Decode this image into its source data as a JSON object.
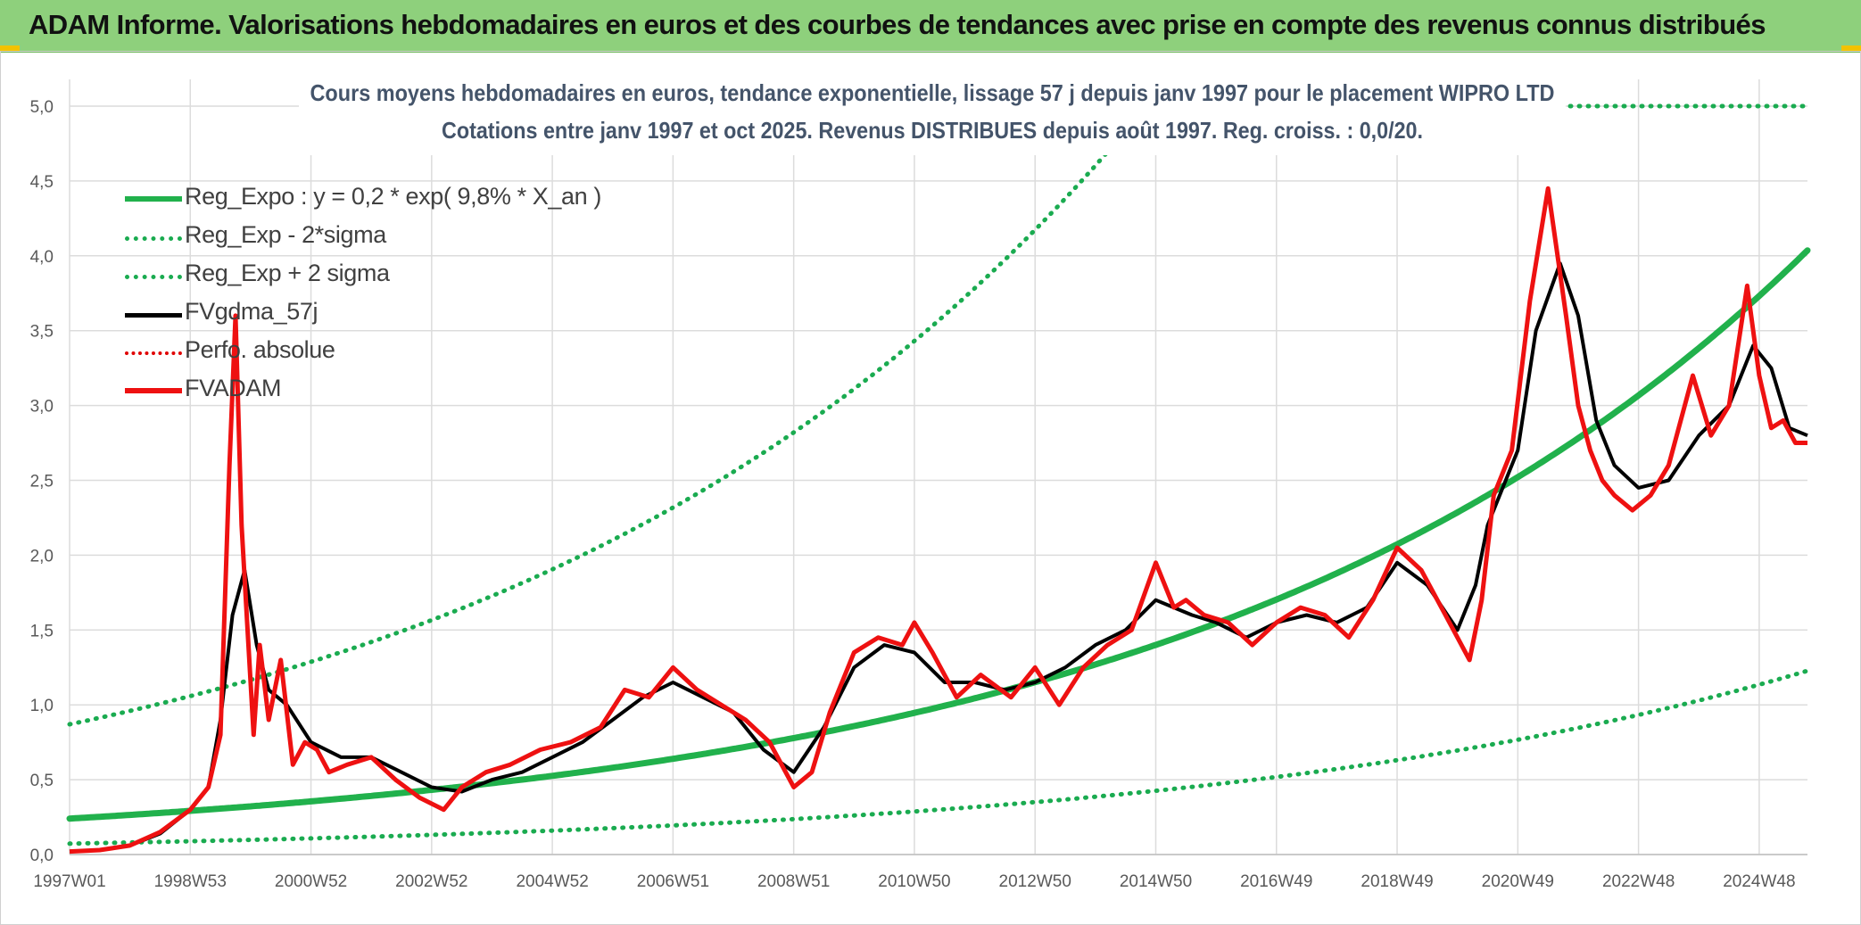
{
  "header": {
    "title": "ADAM Informe. Valorisations hebdomadaires en euros et des courbes de tendances avec prise en compte des revenus connus distribués"
  },
  "colors": {
    "header_bg": "#8ed07c",
    "reg": "#21b14c",
    "reg_band": "#1aab50",
    "fv57": "#000000",
    "perfo": "#e00000",
    "fvadam": "#ee1111",
    "grid": "#dcdcdc"
  },
  "chart_data": {
    "type": "line",
    "title": "Cours moyens hebdomadaires en euros, tendance exponentielle, lissage 57 j depuis janv 1997 pour le placement WIPRO LTD",
    "subtitle": "Cotations entre janv 1997 et oct 2025. Revenus DISTRIBUES depuis août 1997. Reg. croiss. : 0,0/20.",
    "xlabel": "",
    "ylabel": "",
    "xlim": [
      1997.0,
      2025.8
    ],
    "ylim": [
      0,
      5
    ],
    "yticks": [
      "0,0",
      "0,5",
      "1,0",
      "1,5",
      "2,0",
      "2,5",
      "3,0",
      "3,5",
      "4,0",
      "4,5",
      "5,0"
    ],
    "xticks": [
      {
        "label": "1997W01",
        "x": 1997.0
      },
      {
        "label": "1998W53",
        "x": 1999.0
      },
      {
        "label": "2000W52",
        "x": 2001.0
      },
      {
        "label": "2002W52",
        "x": 2003.0
      },
      {
        "label": "2004W52",
        "x": 2005.0
      },
      {
        "label": "2006W51",
        "x": 2007.0
      },
      {
        "label": "2008W51",
        "x": 2009.0
      },
      {
        "label": "2010W50",
        "x": 2011.0
      },
      {
        "label": "2012W50",
        "x": 2013.0
      },
      {
        "label": "2014W50",
        "x": 2015.0
      },
      {
        "label": "2016W49",
        "x": 2017.0
      },
      {
        "label": "2018W49",
        "x": 2019.0
      },
      {
        "label": "2020W49",
        "x": 2021.0
      },
      {
        "label": "2022W48",
        "x": 2023.0
      },
      {
        "label": "2024W48",
        "x": 2025.0
      }
    ],
    "series": [
      {
        "name": "Reg_Expo : y = 0,2 * exp( 9,8% *  X_an )",
        "style": "solid-green-thick",
        "a": 0.24,
        "rate": 0.098
      },
      {
        "name": "Reg_Exp - 2*sigma",
        "style": "dotted-green",
        "a": 0.073,
        "rate": 0.098
      },
      {
        "name": "Reg_Exp + 2 sigma",
        "style": "dotted-green",
        "a": 0.87,
        "rate": 0.098,
        "cap": 5.0
      },
      {
        "name": "FVgdma_57j",
        "style": "solid-black",
        "x": [
          1997.0,
          1997.5,
          1998.0,
          1998.5,
          1999.0,
          1999.3,
          1999.5,
          1999.7,
          1999.9,
          2000.1,
          2000.3,
          2000.6,
          2001.0,
          2001.5,
          2002.0,
          2002.5,
          2003.0,
          2003.5,
          2004.0,
          2004.5,
          2005.0,
          2005.5,
          2006.0,
          2006.5,
          2007.0,
          2007.5,
          2008.0,
          2008.5,
          2009.0,
          2009.5,
          2010.0,
          2010.5,
          2011.0,
          2011.5,
          2012.0,
          2012.5,
          2013.0,
          2013.5,
          2014.0,
          2014.5,
          2015.0,
          2015.3,
          2015.6,
          2016.0,
          2016.5,
          2017.0,
          2017.5,
          2018.0,
          2018.5,
          2019.0,
          2019.5,
          2020.0,
          2020.3,
          2020.5,
          2021.0,
          2021.3,
          2021.7,
          2022.0,
          2022.3,
          2022.6,
          2023.0,
          2023.5,
          2024.0,
          2024.5,
          2024.9,
          2025.2,
          2025.5,
          2025.8
        ],
        "y": [
          0.02,
          0.03,
          0.06,
          0.14,
          0.3,
          0.45,
          0.9,
          1.6,
          1.9,
          1.4,
          1.1,
          1.0,
          0.75,
          0.65,
          0.65,
          0.55,
          0.45,
          0.42,
          0.5,
          0.55,
          0.65,
          0.75,
          0.9,
          1.05,
          1.15,
          1.05,
          0.95,
          0.7,
          0.55,
          0.85,
          1.25,
          1.4,
          1.35,
          1.15,
          1.15,
          1.1,
          1.15,
          1.25,
          1.4,
          1.5,
          1.7,
          1.65,
          1.6,
          1.55,
          1.45,
          1.55,
          1.6,
          1.55,
          1.65,
          1.95,
          1.8,
          1.5,
          1.8,
          2.2,
          2.7,
          3.5,
          3.95,
          3.6,
          2.9,
          2.6,
          2.45,
          2.5,
          2.8,
          3.0,
          3.4,
          3.25,
          2.85,
          2.8
        ]
      },
      {
        "name": "Perfo. absolue",
        "style": "dotted-red"
      },
      {
        "name": "FVADAM",
        "style": "solid-red-thick",
        "x": [
          1997.0,
          1997.5,
          1998.0,
          1998.5,
          1999.0,
          1999.3,
          1999.5,
          1999.65,
          1999.75,
          1999.85,
          1999.95,
          2000.05,
          2000.15,
          2000.3,
          2000.5,
          2000.7,
          2000.9,
          2001.1,
          2001.3,
          2001.6,
          2002.0,
          2002.4,
          2002.8,
          2003.2,
          2003.5,
          2003.9,
          2004.3,
          2004.8,
          2005.3,
          2005.8,
          2006.2,
          2006.6,
          2007.0,
          2007.4,
          2007.8,
          2008.2,
          2008.6,
          2009.0,
          2009.3,
          2009.6,
          2010.0,
          2010.4,
          2010.8,
          2011.0,
          2011.3,
          2011.7,
          2012.1,
          2012.6,
          2013.0,
          2013.4,
          2013.8,
          2014.2,
          2014.6,
          2015.0,
          2015.3,
          2015.5,
          2015.8,
          2016.2,
          2016.6,
          2017.0,
          2017.4,
          2017.8,
          2018.2,
          2018.6,
          2019.0,
          2019.4,
          2019.8,
          2020.2,
          2020.4,
          2020.6,
          2020.9,
          2021.2,
          2021.5,
          2021.8,
          2022.0,
          2022.2,
          2022.4,
          2022.6,
          2022.9,
          2023.2,
          2023.5,
          2023.9,
          2024.2,
          2024.5,
          2024.8,
          2025.0,
          2025.2,
          2025.4,
          2025.6,
          2025.8
        ],
        "y": [
          0.02,
          0.03,
          0.06,
          0.15,
          0.3,
          0.45,
          0.8,
          2.6,
          3.6,
          2.2,
          1.5,
          0.8,
          1.4,
          0.9,
          1.3,
          0.6,
          0.75,
          0.7,
          0.55,
          0.6,
          0.65,
          0.5,
          0.38,
          0.3,
          0.45,
          0.55,
          0.6,
          0.7,
          0.75,
          0.85,
          1.1,
          1.05,
          1.25,
          1.1,
          1.0,
          0.9,
          0.75,
          0.45,
          0.55,
          0.95,
          1.35,
          1.45,
          1.4,
          1.55,
          1.35,
          1.05,
          1.2,
          1.05,
          1.25,
          1.0,
          1.25,
          1.4,
          1.5,
          1.95,
          1.65,
          1.7,
          1.6,
          1.55,
          1.4,
          1.55,
          1.65,
          1.6,
          1.45,
          1.7,
          2.05,
          1.9,
          1.6,
          1.3,
          1.7,
          2.4,
          2.7,
          3.7,
          4.45,
          3.6,
          3.0,
          2.7,
          2.5,
          2.4,
          2.3,
          2.4,
          2.6,
          3.2,
          2.8,
          3.0,
          3.8,
          3.2,
          2.85,
          2.9,
          2.75,
          2.75
        ]
      }
    ]
  }
}
